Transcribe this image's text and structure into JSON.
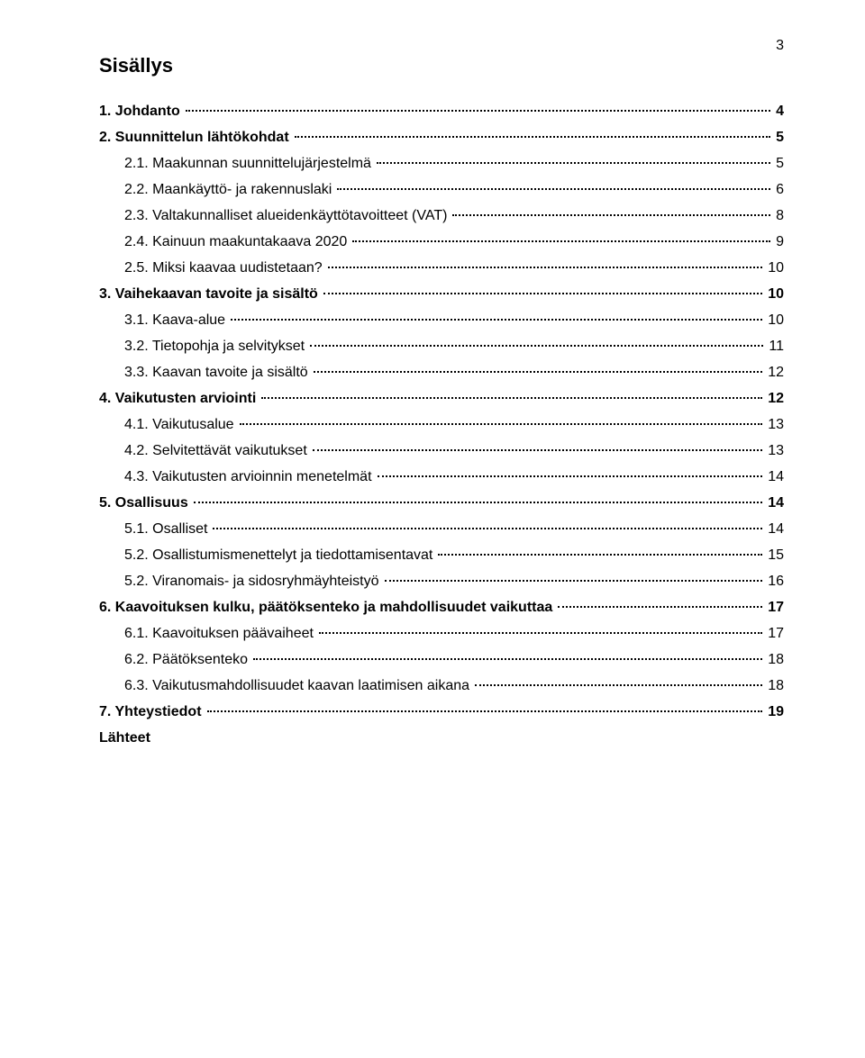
{
  "page_number": "3",
  "toc_title": "Sisällys",
  "entries": [
    {
      "level": 0,
      "label": "1. Johdanto",
      "page": "4"
    },
    {
      "level": 0,
      "label": "2. Suunnittelun lähtökohdat",
      "page": "5"
    },
    {
      "level": 1,
      "label": "2.1. Maakunnan suunnittelujärjestelmä",
      "page": "5"
    },
    {
      "level": 1,
      "label": "2.2. Maankäyttö- ja rakennuslaki",
      "page": "6"
    },
    {
      "level": 1,
      "label": "2.3. Valtakunnalliset alueidenkäyttötavoitteet (VAT)",
      "page": "8"
    },
    {
      "level": 1,
      "label": "2.4. Kainuun maakuntakaava 2020",
      "page": "9"
    },
    {
      "level": 1,
      "label": "2.5. Miksi kaavaa uudistetaan?",
      "page": "10"
    },
    {
      "level": 0,
      "label": "3. Vaihekaavan tavoite ja sisältö",
      "page": "10"
    },
    {
      "level": 1,
      "label": "3.1. Kaava-alue",
      "page": "10"
    },
    {
      "level": 1,
      "label": "3.2. Tietopohja ja selvitykset",
      "page": "11"
    },
    {
      "level": 1,
      "label": "3.3. Kaavan tavoite ja sisältö",
      "page": "12"
    },
    {
      "level": 0,
      "label": "4. Vaikutusten arviointi",
      "page": "12"
    },
    {
      "level": 1,
      "label": "4.1. Vaikutusalue",
      "page": "13"
    },
    {
      "level": 1,
      "label": "4.2. Selvitettävät vaikutukset",
      "page": "13"
    },
    {
      "level": 1,
      "label": "4.3. Vaikutusten arvioinnin menetelmät",
      "page": "14"
    },
    {
      "level": 0,
      "label": "5. Osallisuus",
      "page": "14"
    },
    {
      "level": 1,
      "label": "5.1. Osalliset",
      "page": "14"
    },
    {
      "level": 1,
      "label": "5.2. Osallistumismenettelyt ja tiedottamisentavat",
      "page": "15"
    },
    {
      "level": 1,
      "label": "5.2. Viranomais- ja sidosryhmäyhteistyö",
      "page": "16"
    },
    {
      "level": 0,
      "label": "6. Kaavoituksen kulku, päätöksenteko ja mahdollisuudet vaikuttaa",
      "page": "17"
    },
    {
      "level": 1,
      "label": "6.1. Kaavoituksen päävaiheet",
      "page": "17"
    },
    {
      "level": 1,
      "label": "6.2. Päätöksenteko",
      "page": "18"
    },
    {
      "level": 1,
      "label": "6.3. Vaikutusmahdollisuudet kaavan laatimisen aikana",
      "page": "18"
    },
    {
      "level": 0,
      "label": "7. Yhteystiedot",
      "page": "19"
    },
    {
      "level": 0,
      "label": "Lähteet",
      "page": ""
    }
  ]
}
